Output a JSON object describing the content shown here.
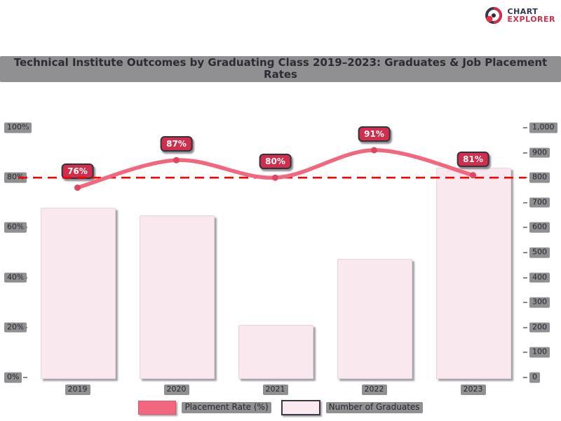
{
  "logo": {
    "icon": "scope-logo-icon",
    "line1": "CHART",
    "line2": "EXPLORER"
  },
  "title": "Technical Institute Outcomes by Graduating Class 2019–2023: Graduates & Job Placement Rates",
  "legend": [
    {
      "label": "Placement Rate (%)"
    },
    {
      "label": "Number of Graduates"
    }
  ],
  "chart_data": {
    "type": "combo-bar-line",
    "title": "Technical Institute Outcomes by Graduating Class 2019–2023: Graduates & Job Placement Rates",
    "categories": [
      "2019",
      "2020",
      "2021",
      "2022",
      "2023"
    ],
    "series": [
      {
        "name": "Placement Rate (%)",
        "type": "line",
        "axis": "left",
        "values": [
          76,
          87,
          80,
          91,
          81
        ],
        "point_labels": [
          "76%",
          "87%",
          "80%",
          "91%",
          "81%"
        ],
        "color": "#f2677e",
        "point_color": "#e0455f"
      },
      {
        "name": "Number of Graduates",
        "type": "bar",
        "axis": "right",
        "values": [
          680,
          650,
          210,
          475,
          840
        ],
        "color": "#f9e9ef"
      }
    ],
    "target_line": {
      "value": 80,
      "axis": "left",
      "style": "dashed",
      "color": "#fe0000"
    },
    "left_axis": {
      "min": 0,
      "max": 100,
      "ticks": [
        0,
        20,
        40,
        60,
        80,
        100
      ],
      "tick_labels": [
        "0%",
        "20%",
        "40%",
        "60%",
        "80%",
        "100%"
      ]
    },
    "right_axis": {
      "min": 0,
      "max": 1000,
      "ticks": [
        0,
        100,
        200,
        300,
        400,
        500,
        600,
        700,
        800,
        900,
        1000
      ],
      "tick_labels": [
        "0",
        "100",
        "200",
        "300",
        "400",
        "500",
        "600",
        "700",
        "800",
        "900",
        "1,000"
      ]
    },
    "grid": false,
    "legend_position": "bottom",
    "badge_color": "#d02e4c"
  }
}
